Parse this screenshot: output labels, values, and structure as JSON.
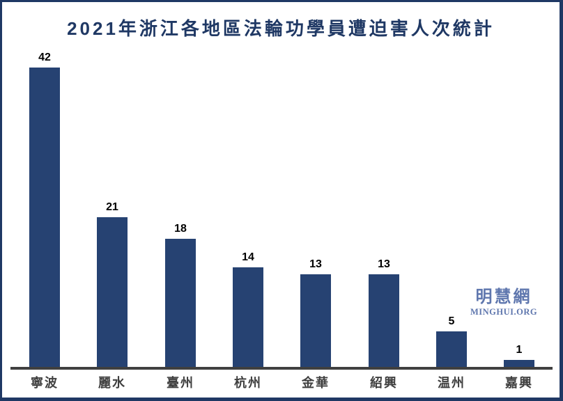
{
  "window": {
    "background": "#ffffff",
    "frame_border_color": "#1f3864"
  },
  "chart_data": {
    "type": "bar",
    "title": "2021年浙江各地區法輪功學員遭迫害人次統計",
    "categories": [
      "寧波",
      "麗水",
      "臺州",
      "杭州",
      "金華",
      "紹興",
      "温州",
      "嘉興"
    ],
    "values": [
      42,
      21,
      18,
      14,
      13,
      13,
      5,
      1
    ],
    "xlabel": "",
    "ylabel": "",
    "ylim": [
      0,
      42
    ],
    "gridlines": false,
    "legend": "none",
    "data_labels_shown": true,
    "bar_color": "#264272",
    "title_color": "#1f3864",
    "value_label_color": "#000000",
    "category_label_color": "#3f3f3f",
    "axis_line_color": "#404040"
  },
  "watermark": {
    "cjk_text": "明慧網",
    "latin_text": "MINGHUI.ORG",
    "color": "#5f77ae"
  }
}
